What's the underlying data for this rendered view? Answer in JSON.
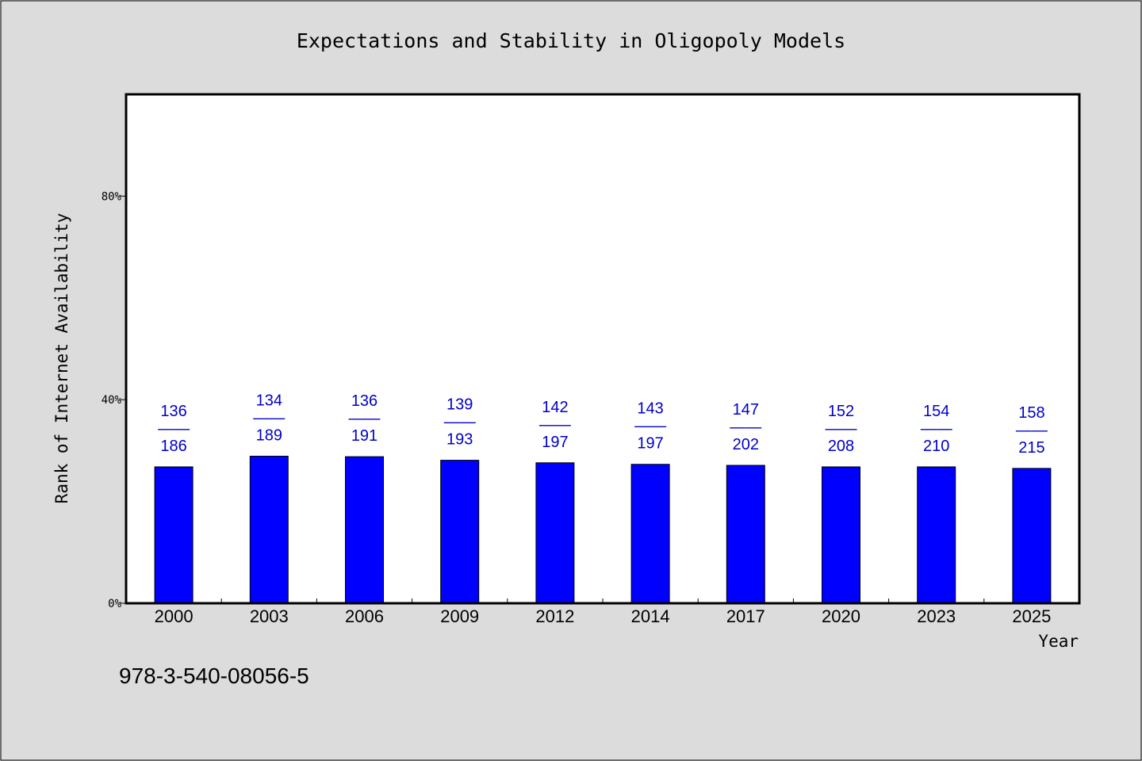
{
  "chart_data": {
    "type": "bar",
    "title": "Expectations and Stability in Oligopoly Models",
    "xlabel": "Year",
    "ylabel": "Rank of Internet Availability",
    "categories": [
      "2000",
      "2003",
      "2006",
      "2009",
      "2012",
      "2014",
      "2017",
      "2020",
      "2023",
      "2025"
    ],
    "values": [
      0.268,
      0.289,
      0.288,
      0.281,
      0.276,
      0.273,
      0.271,
      0.268,
      0.268,
      0.265
    ],
    "value_labels": [
      {
        "top": "136",
        "bottom": "186"
      },
      {
        "top": "134",
        "bottom": "189"
      },
      {
        "top": "136",
        "bottom": "191"
      },
      {
        "top": "139",
        "bottom": "193"
      },
      {
        "top": "142",
        "bottom": "197"
      },
      {
        "top": "143",
        "bottom": "197"
      },
      {
        "top": "147",
        "bottom": "202"
      },
      {
        "top": "152",
        "bottom": "208"
      },
      {
        "top": "154",
        "bottom": "210"
      },
      {
        "top": "158",
        "bottom": "215"
      }
    ],
    "label_separator": "——",
    "ylim": [
      0,
      1.0
    ],
    "yticks": [
      0,
      0.4,
      0.8
    ],
    "ytick_labels": [
      "0%",
      "40%",
      "80%"
    ],
    "grid": false,
    "bar_color": "#0000ff",
    "label_color": "#0000cc"
  },
  "footer": {
    "code": "978-3-540-08056-5"
  }
}
